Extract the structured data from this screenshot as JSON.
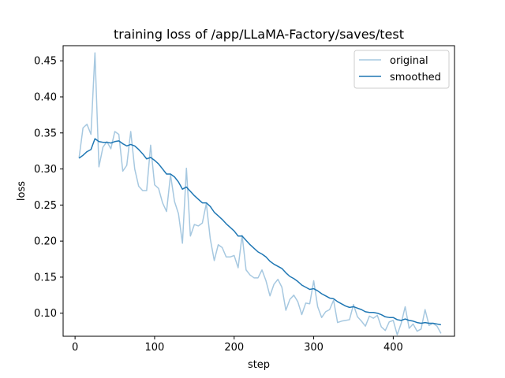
{
  "chart_data": {
    "type": "line",
    "title": "training loss of /app/LLaMA-Factory/saves/test",
    "xlabel": "step",
    "ylabel": "loss",
    "xlim": [
      -15,
      477
    ],
    "ylim": [
      0.068,
      0.471
    ],
    "xticks": [
      0,
      100,
      200,
      300,
      400
    ],
    "yticks": [
      0.1,
      0.15,
      0.2,
      0.25,
      0.3,
      0.35,
      0.4,
      0.45
    ],
    "grid": false,
    "legend_position": "top-right",
    "series": [
      {
        "name": "original",
        "color": "#a6c8e0",
        "x": [
          5,
          10,
          15,
          20,
          25,
          30,
          35,
          40,
          45,
          50,
          55,
          60,
          65,
          70,
          75,
          80,
          85,
          90,
          95,
          100,
          105,
          110,
          115,
          120,
          125,
          130,
          135,
          140,
          145,
          150,
          155,
          160,
          165,
          170,
          175,
          180,
          185,
          190,
          195,
          200,
          205,
          210,
          215,
          220,
          225,
          230,
          235,
          240,
          245,
          250,
          255,
          260,
          265,
          270,
          275,
          280,
          285,
          290,
          295,
          300,
          305,
          310,
          315,
          320,
          325,
          330,
          335,
          340,
          345,
          350,
          355,
          360,
          365,
          370,
          375,
          380,
          385,
          390,
          395,
          400,
          405,
          410,
          415,
          420,
          425,
          430,
          435,
          440,
          445,
          450,
          455,
          460
        ],
        "y": [
          0.315,
          0.357,
          0.362,
          0.348,
          0.461,
          0.303,
          0.33,
          0.338,
          0.328,
          0.352,
          0.348,
          0.297,
          0.305,
          0.352,
          0.3,
          0.276,
          0.27,
          0.27,
          0.333,
          0.278,
          0.273,
          0.253,
          0.241,
          0.292,
          0.255,
          0.238,
          0.197,
          0.301,
          0.207,
          0.223,
          0.221,
          0.225,
          0.252,
          0.203,
          0.173,
          0.195,
          0.191,
          0.178,
          0.178,
          0.18,
          0.163,
          0.208,
          0.16,
          0.153,
          0.149,
          0.149,
          0.16,
          0.145,
          0.124,
          0.14,
          0.147,
          0.136,
          0.104,
          0.119,
          0.125,
          0.116,
          0.098,
          0.114,
          0.113,
          0.145,
          0.109,
          0.094,
          0.102,
          0.105,
          0.118,
          0.087,
          0.089,
          0.09,
          0.091,
          0.112,
          0.095,
          0.089,
          0.082,
          0.096,
          0.093,
          0.097,
          0.081,
          0.076,
          0.088,
          0.09,
          0.07,
          0.086,
          0.109,
          0.079,
          0.085,
          0.075,
          0.078,
          0.105,
          0.083,
          0.086,
          0.082,
          0.072
        ]
      },
      {
        "name": "smoothed",
        "color": "#1f77b4",
        "x": [
          5,
          10,
          15,
          20,
          25,
          30,
          35,
          40,
          45,
          50,
          55,
          60,
          65,
          70,
          75,
          80,
          85,
          90,
          95,
          100,
          105,
          110,
          115,
          120,
          125,
          130,
          135,
          140,
          145,
          150,
          155,
          160,
          165,
          170,
          175,
          180,
          185,
          190,
          195,
          200,
          205,
          210,
          215,
          220,
          225,
          230,
          235,
          240,
          245,
          250,
          255,
          260,
          265,
          270,
          275,
          280,
          285,
          290,
          295,
          300,
          305,
          310,
          315,
          320,
          325,
          330,
          335,
          340,
          345,
          350,
          355,
          360,
          365,
          370,
          375,
          380,
          385,
          390,
          395,
          400,
          405,
          410,
          415,
          420,
          425,
          430,
          435,
          440,
          445,
          450,
          455,
          460
        ],
        "y": [
          0.315,
          0.319,
          0.324,
          0.327,
          0.342,
          0.338,
          0.337,
          0.337,
          0.336,
          0.338,
          0.339,
          0.335,
          0.332,
          0.334,
          0.332,
          0.327,
          0.321,
          0.314,
          0.316,
          0.312,
          0.307,
          0.3,
          0.293,
          0.293,
          0.289,
          0.282,
          0.272,
          0.275,
          0.269,
          0.263,
          0.258,
          0.253,
          0.253,
          0.248,
          0.24,
          0.235,
          0.23,
          0.224,
          0.219,
          0.214,
          0.207,
          0.207,
          0.201,
          0.195,
          0.19,
          0.185,
          0.182,
          0.178,
          0.172,
          0.168,
          0.165,
          0.162,
          0.156,
          0.151,
          0.148,
          0.144,
          0.139,
          0.136,
          0.133,
          0.134,
          0.131,
          0.127,
          0.124,
          0.121,
          0.12,
          0.116,
          0.113,
          0.11,
          0.108,
          0.109,
          0.107,
          0.105,
          0.102,
          0.101,
          0.101,
          0.1,
          0.098,
          0.095,
          0.094,
          0.094,
          0.091,
          0.09,
          0.092,
          0.09,
          0.089,
          0.087,
          0.086,
          0.087,
          0.086,
          0.086,
          0.085,
          0.084
        ]
      }
    ]
  }
}
